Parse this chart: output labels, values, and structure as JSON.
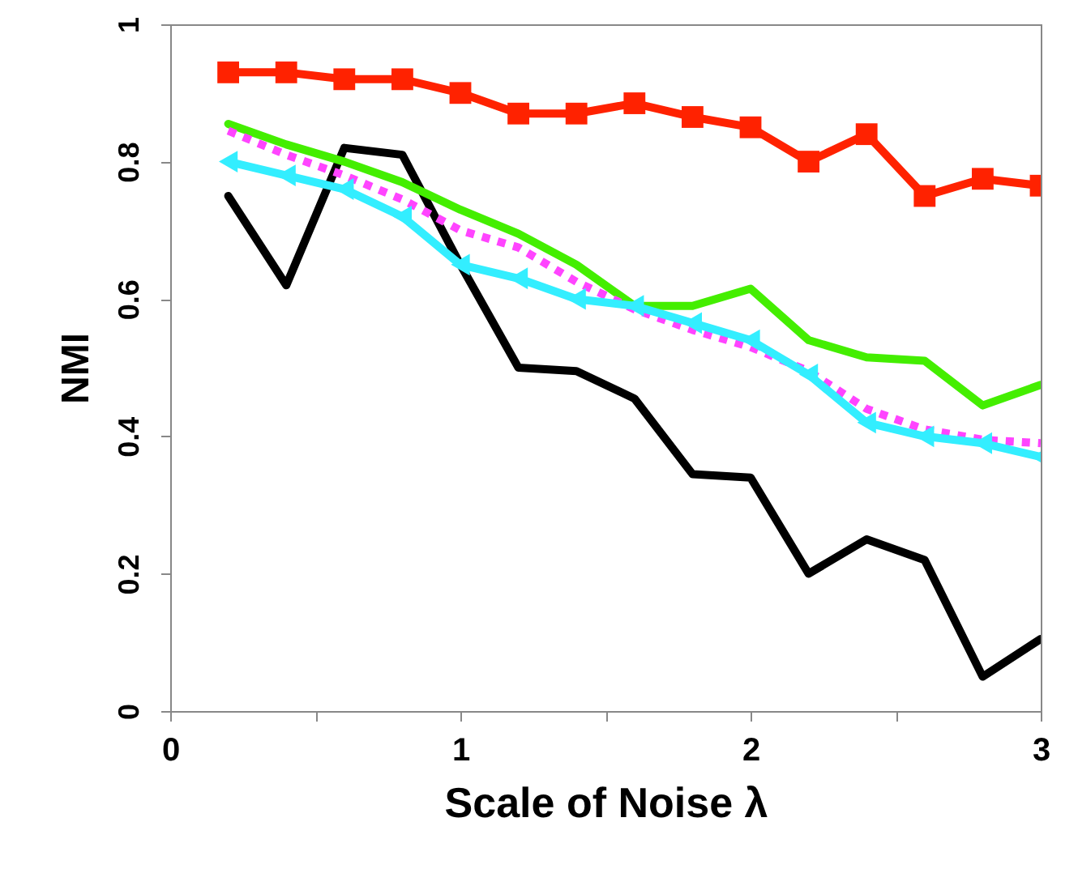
{
  "chart_data": {
    "type": "line",
    "xlabel": "Scale of Noise λ",
    "ylabel": "NMI",
    "x": [
      0.2,
      0.4,
      0.6,
      0.8,
      1.0,
      1.2,
      1.4,
      1.6,
      1.8,
      2.0,
      2.2,
      2.4,
      2.6,
      2.8,
      3.0
    ],
    "xlim": [
      0,
      3
    ],
    "xticks": [
      0,
      {
        "value": 0.5,
        "label": null
      },
      1,
      {
        "value": 1.5,
        "label": null
      },
      2,
      {
        "value": 2.5,
        "label": null
      },
      3
    ],
    "ylim": [
      0,
      1
    ],
    "yticks": [
      0,
      0.2,
      0.4,
      0.6,
      0.8,
      1
    ],
    "grid": false,
    "series": [
      {
        "color": "#ff2200",
        "marker": "square",
        "line_style": "solid",
        "values": [
          0.93,
          0.93,
          0.92,
          0.92,
          0.9,
          0.87,
          0.87,
          0.885,
          0.865,
          0.85,
          0.8,
          0.84,
          0.75,
          0.775,
          0.765
        ]
      },
      {
        "color": "#000000",
        "marker": "none",
        "line_style": "solid",
        "values": [
          0.75,
          0.62,
          0.82,
          0.81,
          0.65,
          0.5,
          0.495,
          0.455,
          0.345,
          0.34,
          0.2,
          0.25,
          0.22,
          0.05,
          0.105
        ]
      },
      {
        "color": "#44ee00",
        "marker": "none",
        "line_style": "solid",
        "values": [
          0.855,
          0.825,
          0.8,
          0.77,
          0.73,
          0.695,
          0.65,
          0.59,
          0.59,
          0.615,
          0.54,
          0.515,
          0.51,
          0.445,
          0.475
        ]
      },
      {
        "color": "#ff44ff",
        "marker": "none",
        "line_style": "dotted",
        "values": [
          0.845,
          0.81,
          0.78,
          0.745,
          0.7,
          0.675,
          0.625,
          0.585,
          0.555,
          0.53,
          0.495,
          0.44,
          0.41,
          0.395,
          0.39
        ]
      },
      {
        "color": "#33eeff",
        "marker": "triangle",
        "line_style": "solid",
        "values": [
          0.8,
          0.78,
          0.76,
          0.72,
          0.65,
          0.63,
          0.6,
          0.59,
          0.565,
          0.54,
          0.49,
          0.42,
          0.4,
          0.39,
          0.37
        ]
      }
    ]
  }
}
